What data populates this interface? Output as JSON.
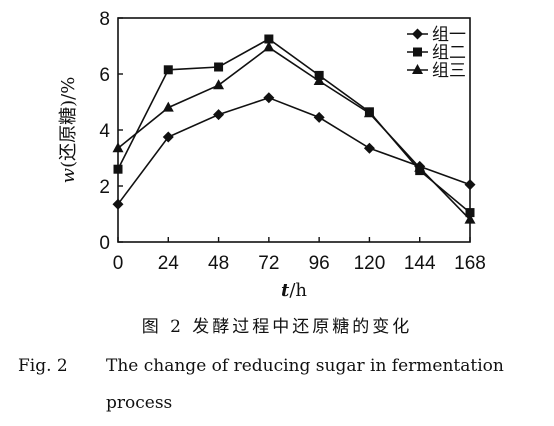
{
  "chart_data": {
    "type": "line",
    "x": [
      0,
      24,
      48,
      72,
      96,
      120,
      144,
      168
    ],
    "xlabel_italic": "t",
    "xlabel_unit": "/h",
    "ylabel_italic": "w",
    "ylabel_rest": "(还原糖)/%",
    "xlim": [
      0,
      168
    ],
    "ylim": [
      0,
      8
    ],
    "xticks": [
      "0",
      "24",
      "48",
      "72",
      "96",
      "120",
      "144",
      "168"
    ],
    "yticks": [
      "0",
      "2",
      "4",
      "6",
      "8"
    ],
    "grid": false,
    "legend_position": "top-right",
    "series": [
      {
        "name": "组一",
        "marker": "diamond",
        "values": [
          1.35,
          3.75,
          4.55,
          5.15,
          4.45,
          3.35,
          2.7,
          2.05
        ]
      },
      {
        "name": "组二",
        "marker": "square",
        "values": [
          2.6,
          6.15,
          6.25,
          7.25,
          5.95,
          4.65,
          2.55,
          1.05
        ]
      },
      {
        "name": "组三",
        "marker": "triangle",
        "values": [
          3.35,
          4.8,
          5.6,
          6.95,
          5.75,
          4.6,
          2.65,
          0.8
        ]
      }
    ]
  },
  "caption": {
    "cn": "图 2   发酵过程中还原糖的变化",
    "en_fig": "Fig. 2",
    "en_line1": "The change of reducing sugar in fermentation",
    "en_line2": "process"
  }
}
